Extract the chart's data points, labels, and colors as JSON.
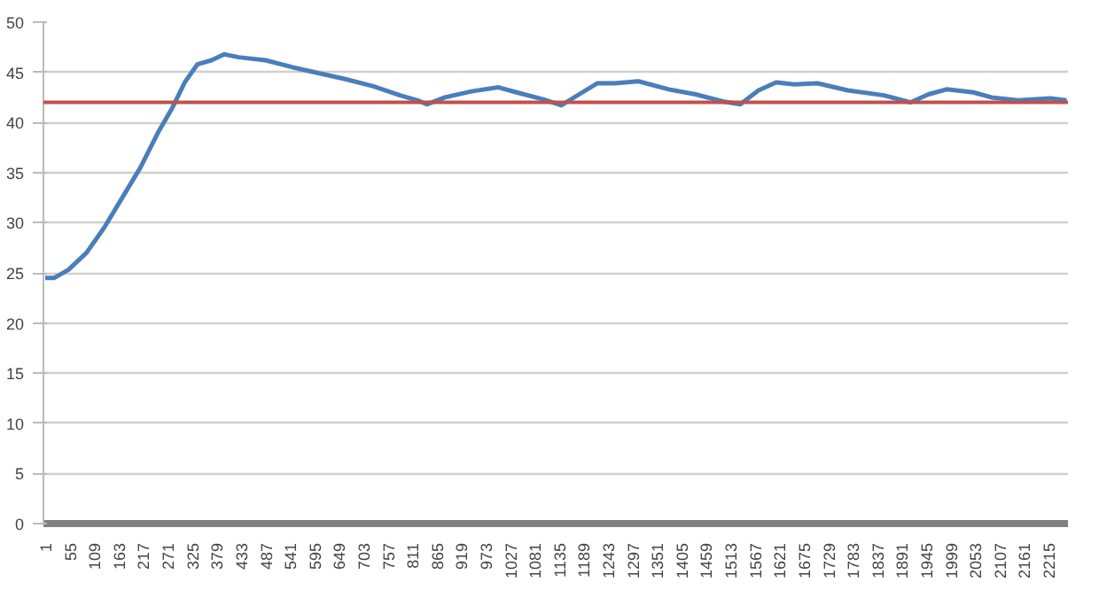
{
  "chart_data": {
    "type": "line",
    "xlim": [
      -3,
      2258
    ],
    "xticks": [
      1,
      55,
      109,
      163,
      217,
      271,
      325,
      379,
      433,
      487,
      541,
      595,
      649,
      703,
      757,
      811,
      865,
      919,
      973,
      1027,
      1081,
      1135,
      1189,
      1243,
      1297,
      1351,
      1405,
      1459,
      1513,
      1567,
      1621,
      1675,
      1729,
      1783,
      1837,
      1891,
      1945,
      1999,
      2053,
      2107,
      2161,
      2215
    ],
    "ylim": [
      0,
      50
    ],
    "yticks": [
      0,
      5,
      10,
      15,
      20,
      25,
      30,
      35,
      40,
      45,
      50
    ],
    "grid": "y",
    "marker": "none",
    "line_style": "solid",
    "series": [
      {
        "color": "#4a7ebb",
        "x": [
          1,
          21,
          52,
          92,
          131,
          171,
          211,
          250,
          282,
          309,
          337,
          368,
          396,
          428,
          487,
          547,
          606,
          665,
          725,
          784,
          823,
          843,
          883,
          942,
          1001,
          1041,
          1100,
          1140,
          1179,
          1219,
          1258,
          1310,
          1377,
          1436,
          1496,
          1535,
          1575,
          1614,
          1654,
          1705,
          1772,
          1852,
          1911,
          1950,
          1990,
          2049,
          2089,
          2148,
          2219,
          2255
        ],
        "values": [
          24.5,
          24.5,
          25.3,
          27,
          29.5,
          32.5,
          35.5,
          39,
          41.5,
          44,
          45.8,
          46.2,
          46.8,
          46.5,
          46.2,
          45.5,
          44.9,
          44.3,
          43.6,
          42.7,
          42.2,
          41.8,
          42.5,
          43.1,
          43.5,
          43,
          42.3,
          41.7,
          42.8,
          43.9,
          43.9,
          44.1,
          43.3,
          42.8,
          42.1,
          41.8,
          43.2,
          44,
          43.8,
          43.9,
          43.2,
          42.7,
          42,
          42.8,
          43.3,
          43,
          42.5,
          42.2,
          42.4,
          42.2
        ]
      }
    ],
    "ref_lines": [
      {
        "axis": "y",
        "value": 42,
        "color": "#c0504d",
        "line_style": "solid"
      }
    ]
  }
}
